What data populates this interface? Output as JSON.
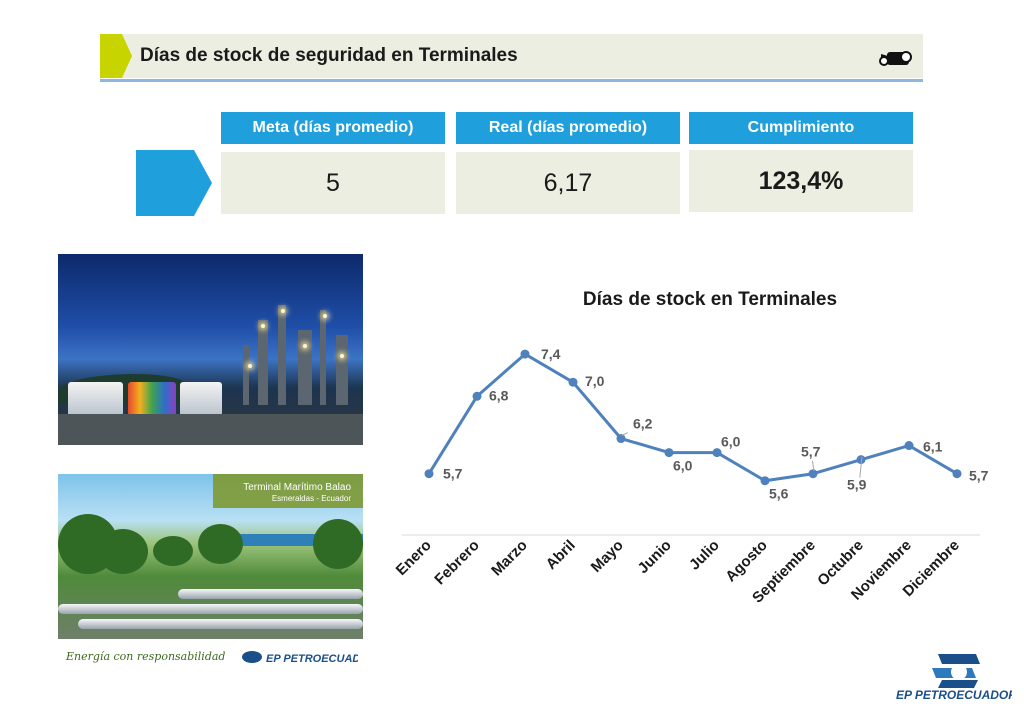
{
  "header": {
    "title": "Días de stock de seguridad en Terminales",
    "icon": "camera-icon"
  },
  "kpis": [
    {
      "label": "Meta (días promedio)",
      "value": "5"
    },
    {
      "label": "Real (días promedio)",
      "value": "6,17"
    },
    {
      "label": "Cumplimiento",
      "value": "123,4%"
    }
  ],
  "photos": {
    "terminal_title": "Terminal Marítimo Balao",
    "terminal_subtitle": "Esmeraldas - Ecuador"
  },
  "footer": {
    "slogan": "Energía con responsabilidad",
    "logo_text": "EP PETROECUADOR"
  },
  "colors": {
    "accent": "#1fa0dc",
    "header_bg": "#ebeee0",
    "tab_green": "#c8d400",
    "line": "#4f81bd",
    "header_rule": "#8fb7de"
  },
  "chart_data": {
    "type": "line",
    "title": "Días  de stock en Terminales",
    "categories": [
      "Enero",
      "Febrero",
      "Marzo",
      "Abril",
      "Mayo",
      "Junio",
      "Julio",
      "Agosto",
      "Septiembre",
      "Octubre",
      "Noviembre",
      "Diciembre"
    ],
    "values": [
      5.7,
      6.8,
      7.4,
      7.0,
      6.2,
      6.0,
      6.0,
      5.6,
      5.7,
      5.9,
      6.1,
      5.7
    ],
    "data_labels": [
      "5,7",
      "6,8",
      "7,4",
      "7,0",
      "6,2",
      "6,0",
      "6,0",
      "5,6",
      "5,7",
      "5,9",
      "6,1",
      "5,7"
    ],
    "ylim": [
      4.9,
      7.6
    ],
    "grid": false,
    "legend": "none",
    "xlabel": "",
    "ylabel": ""
  }
}
